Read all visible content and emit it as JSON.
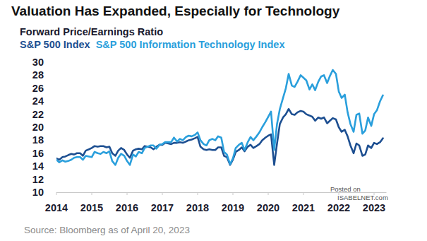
{
  "chart_data": {
    "type": "line",
    "title": "Valuation Has Expanded, Especially for Technology",
    "subtitle": "Forward Price/Earnings Ratio",
    "source": "Source: Bloomberg as of April 20, 2023",
    "annotations": [
      "Posted on",
      "ISABELNET.com"
    ],
    "legend": "top-left",
    "grid": false,
    "xlim": [
      2014,
      2023.35
    ],
    "xticks": [
      2014,
      2015,
      2016,
      2017,
      2018,
      2019,
      2020,
      2021,
      2022,
      2023
    ],
    "ylim": [
      10,
      30
    ],
    "yticks": [
      10,
      12,
      14,
      16,
      18,
      20,
      22,
      24,
      26,
      28,
      30
    ],
    "x": [
      2014.0,
      2014.08,
      2014.17,
      2014.25,
      2014.33,
      2014.42,
      2014.5,
      2014.58,
      2014.67,
      2014.75,
      2014.83,
      2014.92,
      2015.0,
      2015.08,
      2015.17,
      2015.25,
      2015.33,
      2015.42,
      2015.5,
      2015.58,
      2015.67,
      2015.75,
      2015.83,
      2015.92,
      2016.0,
      2016.08,
      2016.17,
      2016.25,
      2016.33,
      2016.42,
      2016.5,
      2016.58,
      2016.67,
      2016.75,
      2016.83,
      2016.92,
      2017.0,
      2017.08,
      2017.17,
      2017.25,
      2017.33,
      2017.42,
      2017.5,
      2017.58,
      2017.67,
      2017.75,
      2017.83,
      2017.92,
      2018.0,
      2018.08,
      2018.17,
      2018.25,
      2018.33,
      2018.42,
      2018.5,
      2018.58,
      2018.67,
      2018.75,
      2018.83,
      2018.92,
      2019.0,
      2019.08,
      2019.17,
      2019.25,
      2019.33,
      2019.42,
      2019.5,
      2019.58,
      2019.67,
      2019.75,
      2019.83,
      2019.92,
      2020.0,
      2020.08,
      2020.17,
      2020.25,
      2020.33,
      2020.42,
      2020.5,
      2020.58,
      2020.67,
      2020.75,
      2020.83,
      2020.92,
      2021.0,
      2021.08,
      2021.17,
      2021.25,
      2021.33,
      2021.42,
      2021.5,
      2021.58,
      2021.67,
      2021.75,
      2021.83,
      2021.92,
      2022.0,
      2022.08,
      2022.17,
      2022.25,
      2022.33,
      2022.42,
      2022.5,
      2022.58,
      2022.67,
      2022.75,
      2022.83,
      2022.92,
      2023.0,
      2023.08,
      2023.17,
      2023.25
    ],
    "series": [
      {
        "name": "S&P 500 Index",
        "color": "#1d4f91",
        "values": [
          15.2,
          15.0,
          15.4,
          15.5,
          15.7,
          15.9,
          15.8,
          16.0,
          16.0,
          15.6,
          16.4,
          16.6,
          16.8,
          17.1,
          17.0,
          17.1,
          17.1,
          16.9,
          17.0,
          16.0,
          15.6,
          16.4,
          16.8,
          16.5,
          15.8,
          15.3,
          16.4,
          16.6,
          16.7,
          16.6,
          17.1,
          17.0,
          16.9,
          16.6,
          17.0,
          17.3,
          17.3,
          17.6,
          17.5,
          17.4,
          17.6,
          17.6,
          17.7,
          17.6,
          17.8,
          18.0,
          18.1,
          18.3,
          18.5,
          17.0,
          16.6,
          16.5,
          16.6,
          16.5,
          16.5,
          16.9,
          16.9,
          15.6,
          15.4,
          14.2,
          15.0,
          16.2,
          16.5,
          16.9,
          16.3,
          17.0,
          17.3,
          16.8,
          17.1,
          17.4,
          18.0,
          18.4,
          18.7,
          18.9,
          14.2,
          17.5,
          20.5,
          21.5,
          22.0,
          22.8,
          22.0,
          21.9,
          22.3,
          22.5,
          22.4,
          22.0,
          21.8,
          21.6,
          21.0,
          21.5,
          21.3,
          21.5,
          20.6,
          21.0,
          21.4,
          21.2,
          20.0,
          19.3,
          19.6,
          18.6,
          17.2,
          16.0,
          17.5,
          17.2,
          15.6,
          15.8,
          17.2,
          16.8,
          17.6,
          17.4,
          17.7,
          18.3
        ]
      },
      {
        "name": "S&P 500 Information Technology Index",
        "color": "#2a9fdc",
        "values": [
          15.0,
          14.6,
          14.9,
          14.7,
          14.8,
          15.0,
          15.3,
          15.4,
          15.4,
          15.0,
          15.6,
          15.5,
          15.4,
          16.2,
          16.0,
          15.9,
          16.2,
          16.0,
          16.3,
          14.8,
          14.2,
          15.3,
          15.9,
          15.6,
          14.8,
          14.2,
          15.8,
          15.5,
          16.2,
          16.0,
          16.8,
          17.0,
          17.2,
          17.2,
          16.7,
          17.3,
          17.4,
          17.7,
          17.7,
          17.7,
          18.4,
          17.8,
          18.2,
          18.0,
          18.5,
          18.7,
          18.6,
          18.8,
          19.2,
          18.0,
          17.4,
          17.2,
          18.0,
          18.2,
          18.0,
          18.6,
          18.4,
          16.2,
          15.8,
          14.3,
          15.2,
          16.8,
          17.3,
          17.6,
          16.5,
          17.7,
          18.5,
          18.0,
          18.6,
          19.2,
          20.0,
          20.8,
          21.6,
          22.4,
          16.5,
          20.5,
          22.8,
          24.5,
          26.0,
          28.2,
          26.4,
          26.2,
          27.0,
          28.0,
          27.6,
          27.2,
          25.8,
          26.6,
          25.7,
          27.0,
          27.8,
          28.0,
          26.8,
          27.9,
          28.8,
          28.2,
          25.5,
          24.5,
          25.0,
          22.3,
          20.5,
          19.3,
          21.9,
          22.1,
          19.0,
          19.5,
          21.5,
          20.2,
          22.0,
          22.6,
          24.0,
          24.9
        ]
      }
    ]
  }
}
